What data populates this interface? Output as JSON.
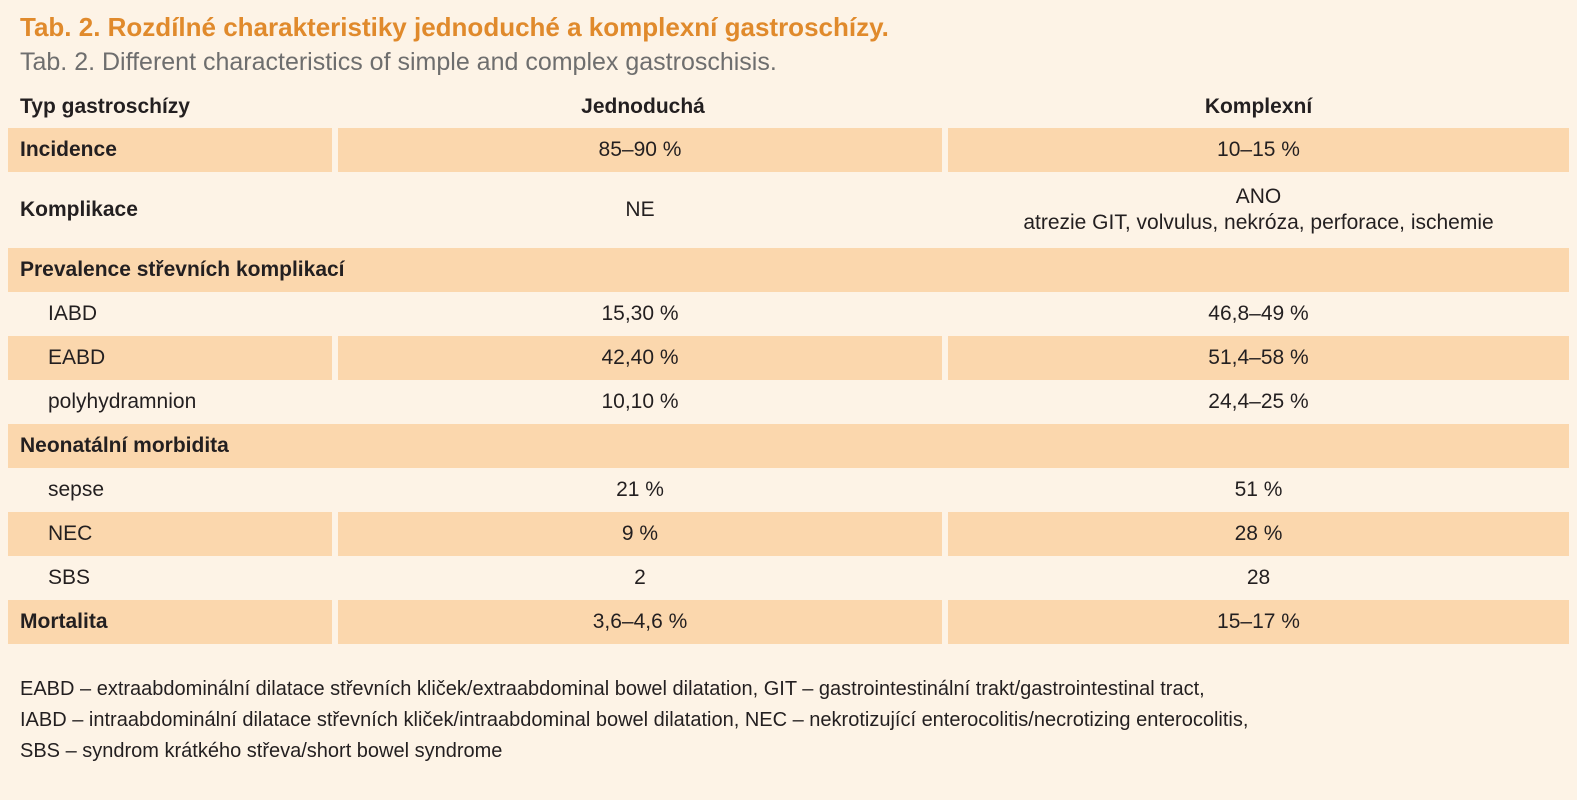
{
  "title": {
    "czech": "Tab. 2. Rozdílné charakteristiky jednoduché a komplexní gastroschízy.",
    "english": "Tab. 2. Different characteristics of simple and complex gastroschisis."
  },
  "table": {
    "headers": [
      "Typ gastroschízy",
      "Jednoduchá",
      "Komplexní"
    ],
    "rows": [
      {
        "label": "Incidence",
        "simple": "85–90 %",
        "complex": "10–15 %"
      },
      {
        "label": "Komplikace",
        "simple": "NE",
        "complex_line1": "ANO",
        "complex_line2": "atrezie GIT, volvulus, nekróza, perforace, ischemie"
      },
      {
        "label": "Prevalence střevních komplikací"
      },
      {
        "label": "IABD",
        "simple": "15,30 %",
        "complex": "46,8–49 %"
      },
      {
        "label": "EABD",
        "simple": "42,40 %",
        "complex": "51,4–58 %"
      },
      {
        "label": "polyhydramnion",
        "simple": "10,10 %",
        "complex": "24,4–25 %"
      },
      {
        "label": "Neonatální morbidita"
      },
      {
        "label": "sepse",
        "simple": "21 %",
        "complex": "51 %"
      },
      {
        "label": "NEC",
        "simple": "9 %",
        "complex": "28 %"
      },
      {
        "label": "SBS",
        "simple": "2",
        "complex": "28"
      },
      {
        "label": "Mortalita",
        "simple": "3,6–4,6 %",
        "complex": "15–17 %"
      }
    ]
  },
  "footnote": {
    "line1": "EABD – extraabdominální dilatace střevních kliček/extraabdominal bowel dilatation, GIT – gastrointestinální trakt/gastrointestinal tract,",
    "line2": "IABD – intraabdominální dilatace střevních kliček/intraabdominal bowel dilatation, NEC – nekrotizující enterocolitis/necrotizing enterocolitis,",
    "line3": "SBS – syndrom krátkého střeva/short bowel syndrome"
  },
  "colors": {
    "panel_background": "#fdf3e6",
    "shaded_row": "#fbd7ad",
    "title_orange": "#e08a2c",
    "subtitle_gray": "#6e6e6e",
    "text": "#231f20"
  }
}
